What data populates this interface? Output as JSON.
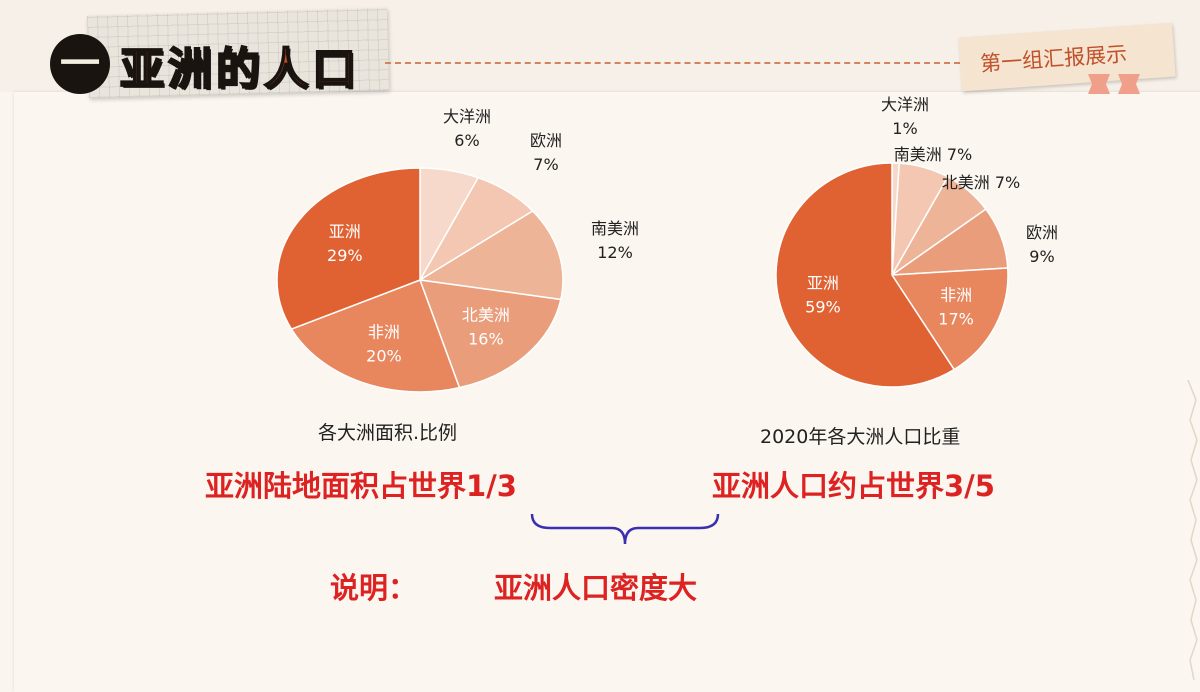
{
  "header": {
    "number": "一",
    "title": "亚洲的人口",
    "badge": "第一组汇报展示"
  },
  "chart_data": [
    {
      "type": "pie",
      "caption": "各大洲面积.比例",
      "slices": [
        {
          "name": "大洋洲",
          "value": 6,
          "label": "6%",
          "color": "#f6d9cb"
        },
        {
          "name": "欧洲",
          "value": 7,
          "label": "7%",
          "color": "#f3c7b1"
        },
        {
          "name": "南美洲",
          "value": 12,
          "label": "12%",
          "color": "#eeb498"
        },
        {
          "name": "北美洲",
          "value": 16,
          "label": "16%",
          "color": "#e99d7b"
        },
        {
          "name": "非洲",
          "value": 20,
          "label": "20%",
          "color": "#e8865d"
        },
        {
          "name": "亚洲",
          "value": 29,
          "label": "29%",
          "color": "#e06232"
        }
      ]
    },
    {
      "type": "pie",
      "caption": "2020年各大洲人口比重",
      "slices": [
        {
          "name": "大洋洲",
          "value": 1,
          "label": "1%",
          "color": "#f6d9cb"
        },
        {
          "name": "南美洲",
          "value": 7,
          "label": "7%",
          "color": "#f3c7b1"
        },
        {
          "name": "北美洲",
          "value": 7,
          "label": "7%",
          "color": "#eeb498"
        },
        {
          "name": "欧洲",
          "value": 9,
          "label": "9%",
          "color": "#e99d7b"
        },
        {
          "name": "非洲",
          "value": 17,
          "label": "17%",
          "color": "#e8865d"
        },
        {
          "name": "亚洲",
          "value": 59,
          "label": "59%",
          "color": "#e06232"
        }
      ]
    }
  ],
  "statements": {
    "left": "亚洲陆地面积占世界1/3",
    "right": "亚洲人口约占世界3/5",
    "conclusion_label": "说明：",
    "conclusion": "亚洲人口密度大"
  }
}
